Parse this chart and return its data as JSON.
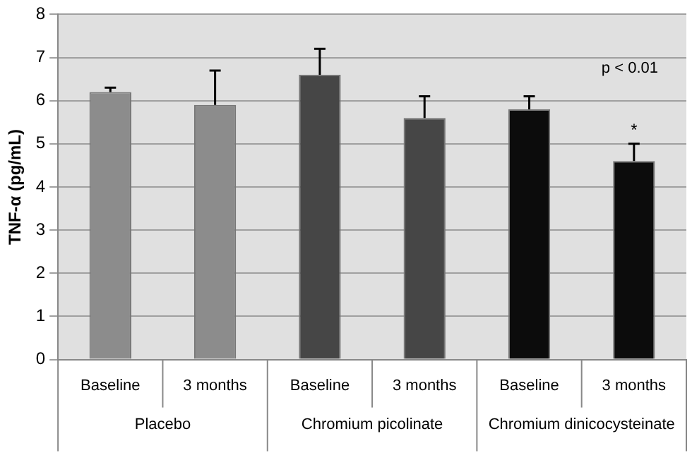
{
  "chart_data": {
    "type": "bar",
    "ylabel": "TNF-α (pg/mL)",
    "categories": [
      "Baseline",
      "3 months",
      "Baseline",
      "3 months",
      "Baseline",
      "3 months"
    ],
    "values": [
      6.2,
      5.9,
      6.6,
      5.6,
      5.8,
      4.6
    ],
    "colors": [
      "#8c8c8c",
      "#8c8c8c",
      "#464646",
      "#464646",
      "#0c0c0c",
      "#0c0c0c"
    ],
    "errors": [
      [
        6.2,
        6.3
      ],
      [
        5.9,
        6.7
      ],
      [
        6.6,
        7.2
      ],
      [
        5.6,
        6.1
      ],
      [
        5.8,
        6.1
      ],
      [
        4.6,
        5.0
      ]
    ],
    "value_labels": [
      null,
      null,
      null,
      null,
      null,
      "*"
    ],
    "annotations": [
      "Placebo",
      "Chromium picolinate",
      "Chromium dinicocysteinate",
      "p < 0.01"
    ],
    "ylim": [
      0,
      8
    ],
    "yticks": [
      0,
      1,
      2,
      3,
      4,
      5,
      6,
      7,
      8
    ],
    "grid": "y",
    "legend": false
  }
}
